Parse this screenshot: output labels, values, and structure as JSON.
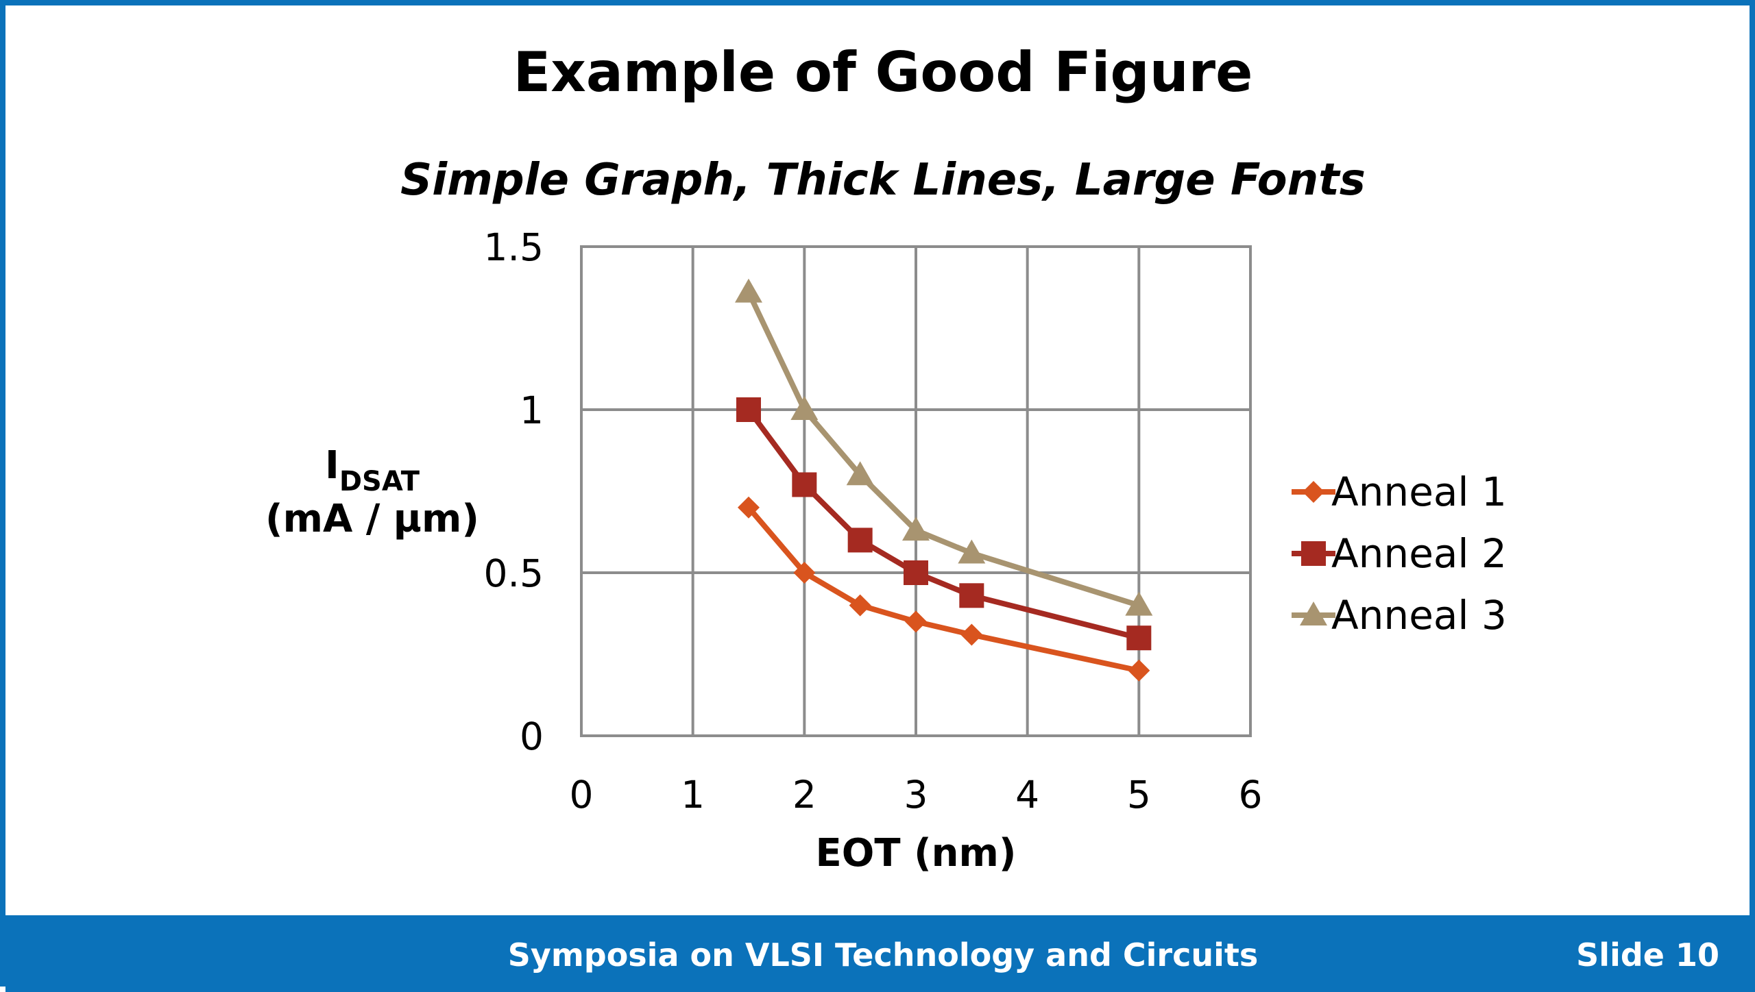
{
  "slide": {
    "title": "Example of Good Figure",
    "subtitle": "Simple Graph, Thick Lines, Large Fonts",
    "footer_text": "Symposia on VLSI Technology and Circuits",
    "slide_number": "Slide 10",
    "accent_color": "#0b72ba"
  },
  "chart_data": {
    "type": "line",
    "title": "",
    "xlabel": "EOT (nm)",
    "ylabel_main": "I",
    "ylabel_sub": "DSAT",
    "ylabel_units": "(mA / µm)",
    "xlim": [
      0,
      6
    ],
    "ylim": [
      0,
      1.5
    ],
    "x_ticks": [
      0,
      1,
      2,
      3,
      4,
      5,
      6
    ],
    "x_tick_labels": [
      "0",
      "1",
      "2",
      "3",
      "4",
      "5",
      "6"
    ],
    "y_ticks": [
      0,
      0.5,
      1,
      1.5
    ],
    "y_tick_labels": [
      "0",
      "0.5",
      "1",
      "1.5"
    ],
    "grid": true,
    "legend_position": "right",
    "series": [
      {
        "name": "Anneal 1",
        "color": "#d9541e",
        "marker": "diamond",
        "x": [
          1.5,
          2,
          2.5,
          3,
          3.5,
          5
        ],
        "values": [
          0.7,
          0.5,
          0.4,
          0.35,
          0.31,
          0.2
        ]
      },
      {
        "name": "Anneal 2",
        "color": "#a52a21",
        "marker": "square",
        "x": [
          1.5,
          2,
          2.5,
          3,
          3.5,
          5
        ],
        "values": [
          1.0,
          0.77,
          0.6,
          0.5,
          0.43,
          0.3
        ]
      },
      {
        "name": "Anneal 3",
        "color": "#a89470",
        "marker": "triangle",
        "x": [
          1.5,
          2,
          2.5,
          3,
          3.5,
          5
        ],
        "values": [
          1.36,
          1.0,
          0.8,
          0.63,
          0.56,
          0.4
        ]
      }
    ]
  }
}
